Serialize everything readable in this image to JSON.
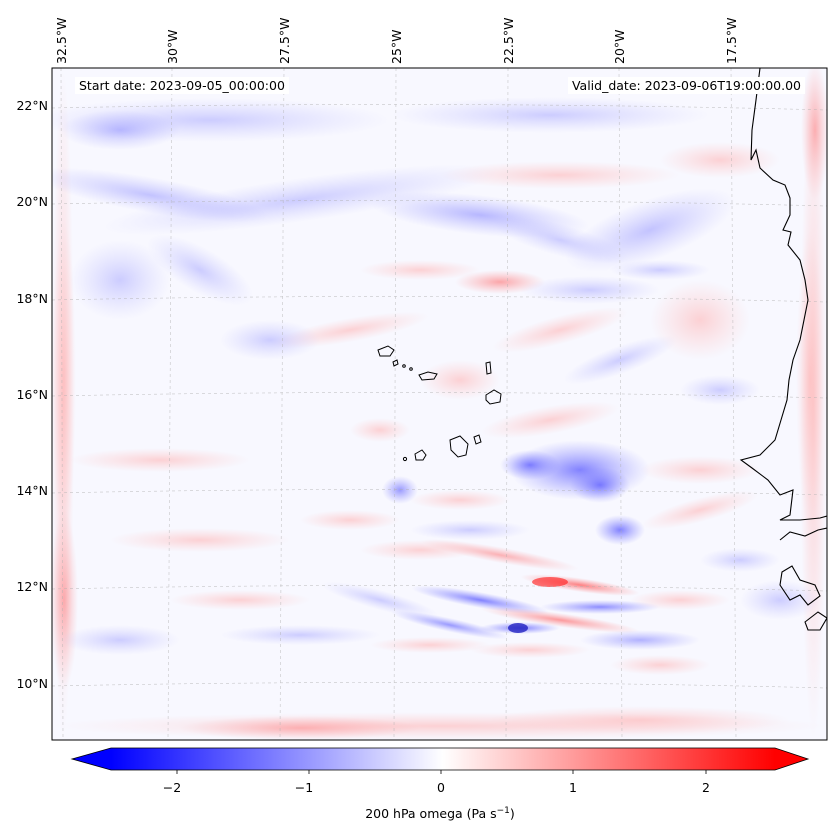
{
  "header": {
    "start_date": "Start date: 2023-09-05_00:00:00",
    "valid_date": "Valid_date: 2023-09-06T19:00:00.00"
  },
  "map": {
    "longitude_labels": [
      "32.5°W",
      "30°W",
      "27.5°W",
      "25°W",
      "22.5°W",
      "20°W",
      "17.5°W"
    ],
    "latitude_labels": [
      "22°N",
      "20°N",
      "18°N",
      "16°N",
      "14°N",
      "12°N",
      "10°N"
    ],
    "lon_range_deg": [
      -32.6,
      -15.5
    ],
    "lat_range_deg": [
      8.9,
      22.8
    ],
    "field": "200 hPa omega",
    "colormap": "bwr"
  },
  "colorbar": {
    "tick_labels": [
      "−2",
      "−1",
      "0",
      "1",
      "2"
    ],
    "tick_values": [
      -2,
      -1,
      0,
      1,
      2
    ],
    "range": [
      -2.5,
      2.5
    ],
    "extend": "both",
    "label_prefix": "200 hPa omega (Pa s",
    "label_exponent": "−1",
    "label_suffix": ")",
    "colors": {
      "negative": "#0000ff",
      "zero": "#ffffff",
      "positive": "#ff0000"
    }
  }
}
